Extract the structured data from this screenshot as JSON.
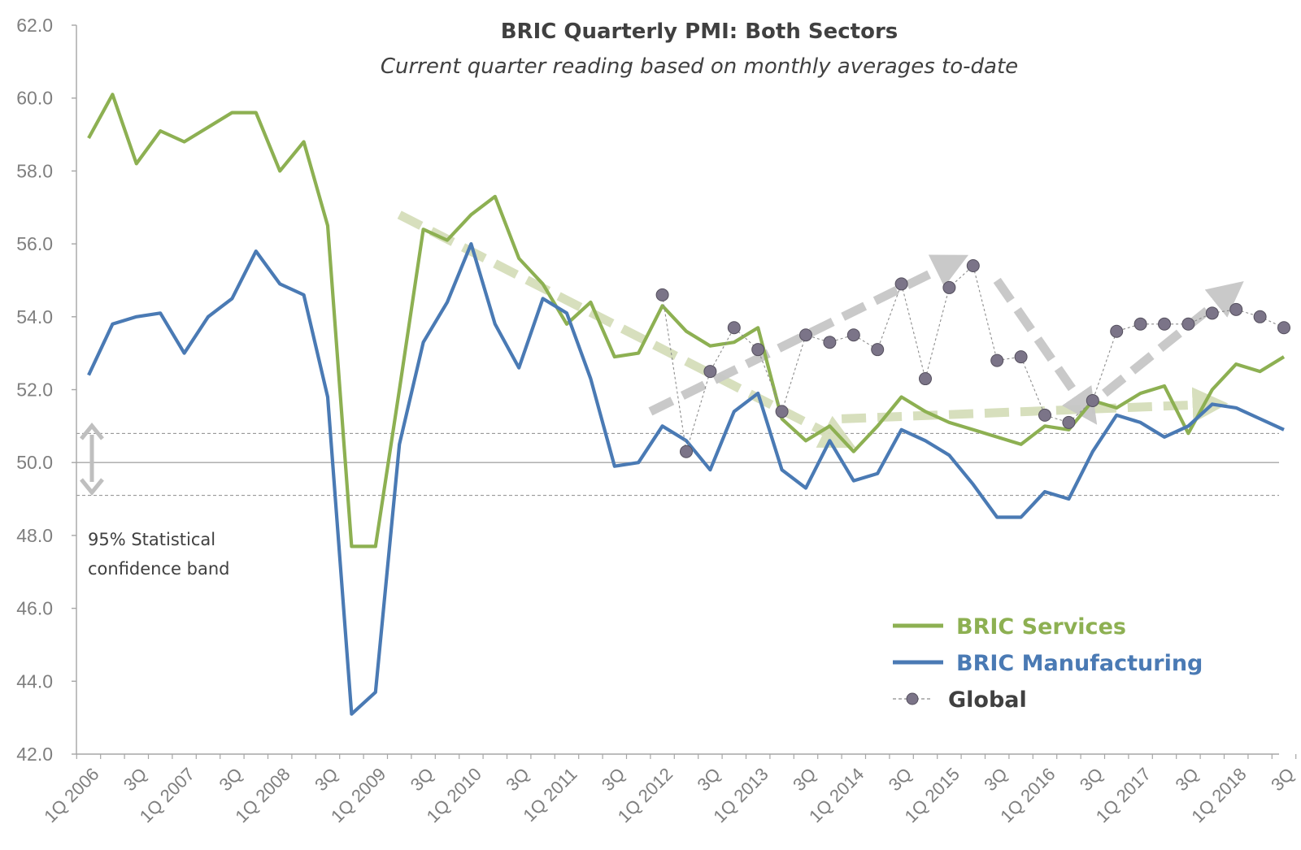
{
  "chart_data": {
    "type": "line",
    "title": "BRIC Quarterly PMI: Both Sectors",
    "subtitle": "Current quarter reading based on monthly averages to-date",
    "ylim": [
      42.0,
      62.0
    ],
    "yticks": [
      "42.0",
      "44.0",
      "46.0",
      "48.0",
      "50.0",
      "52.0",
      "54.0",
      "56.0",
      "58.0",
      "60.0",
      "62.0"
    ],
    "xtick_labels": [
      "1Q 2006",
      "3Q",
      "1Q 2007",
      "3Q",
      "1Q 2008",
      "3Q",
      "1Q 2009",
      "3Q",
      "1Q 2010",
      "3Q",
      "1Q 2011",
      "3Q",
      "1Q 2012",
      "3Q",
      "1Q 2013",
      "3Q",
      "1Q 2014",
      "3Q",
      "1Q 2015",
      "3Q",
      "1Q 2016",
      "3Q",
      "1Q 2017",
      "3Q",
      "1Q 2018",
      "3Q"
    ],
    "reference_line": 50.0,
    "confidence_band": [
      49.1,
      50.8
    ],
    "band_label_line1": "95% Statistical",
    "band_label_line2": "confidence band",
    "series": [
      {
        "name": "BRIC Services",
        "color": "#8db052",
        "values": [
          58.9,
          60.1,
          58.2,
          59.1,
          58.8,
          59.2,
          59.6,
          59.6,
          58.0,
          58.8,
          56.5,
          47.7,
          47.7,
          52.0,
          56.4,
          56.1,
          56.8,
          57.3,
          55.6,
          54.9,
          53.8,
          54.4,
          52.9,
          53.0,
          54.3,
          53.6,
          53.2,
          53.3,
          53.7,
          51.2,
          50.6,
          51.0,
          50.3,
          51.0,
          51.8,
          51.4,
          51.1,
          50.9,
          50.7,
          50.5,
          51.0,
          50.9,
          51.7,
          51.5,
          51.9,
          52.1,
          50.8,
          52.0,
          52.7,
          52.5,
          52.9
        ]
      },
      {
        "name": "BRIC Manufacturing",
        "color": "#4a7ab4",
        "values": [
          52.4,
          53.8,
          54.0,
          54.1,
          53.0,
          54.0,
          54.5,
          55.8,
          54.9,
          54.6,
          51.8,
          43.1,
          43.7,
          50.5,
          53.3,
          54.4,
          56.0,
          53.8,
          52.6,
          54.5,
          54.1,
          52.3,
          49.9,
          50.0,
          51.0,
          50.6,
          49.8,
          51.4,
          51.9,
          49.8,
          49.3,
          50.6,
          49.5,
          49.7,
          50.9,
          50.6,
          50.2,
          49.4,
          48.5,
          48.5,
          49.2,
          49.0,
          50.3,
          51.3,
          51.1,
          50.7,
          51.0,
          51.6,
          51.5,
          51.2,
          50.9
        ]
      },
      {
        "name": "Global",
        "color": "#7b7488",
        "start_index": 24,
        "values": [
          54.6,
          50.3,
          52.5,
          53.7,
          53.1,
          51.4,
          53.5,
          53.3,
          53.5,
          53.1,
          54.9,
          52.3,
          54.8,
          55.4,
          52.8,
          52.9,
          51.3,
          51.1,
          51.7,
          53.6,
          53.8,
          53.8,
          53.8,
          54.1,
          54.2,
          54.0,
          53.7
        ]
      }
    ],
    "trend_arrows": [
      {
        "color": "#d5deba",
        "from": [
          13,
          56.8
        ],
        "to": [
          31.5,
          50.6
        ]
      },
      {
        "color": "#d5deba",
        "from": [
          31.5,
          51.2
        ],
        "to": [
          47,
          51.6
        ]
      },
      {
        "color": "#c7c7c7",
        "from": [
          23.5,
          51.4
        ],
        "to": [
          36.2,
          55.5
        ]
      },
      {
        "color": "#c7c7c7",
        "from": [
          38,
          55.0
        ],
        "to": [
          41.8,
          51.4
        ]
      },
      {
        "color": "#c7c7c7",
        "from": [
          42.5,
          51.9
        ],
        "to": [
          47.8,
          54.7
        ]
      }
    ],
    "legend": [
      {
        "label": "BRIC Services",
        "color": "#8db052",
        "marker": false
      },
      {
        "label": "BRIC Manufacturing",
        "color": "#4a7ab4",
        "marker": false
      },
      {
        "label": "Global",
        "color": "#404040",
        "marker": true
      }
    ]
  }
}
